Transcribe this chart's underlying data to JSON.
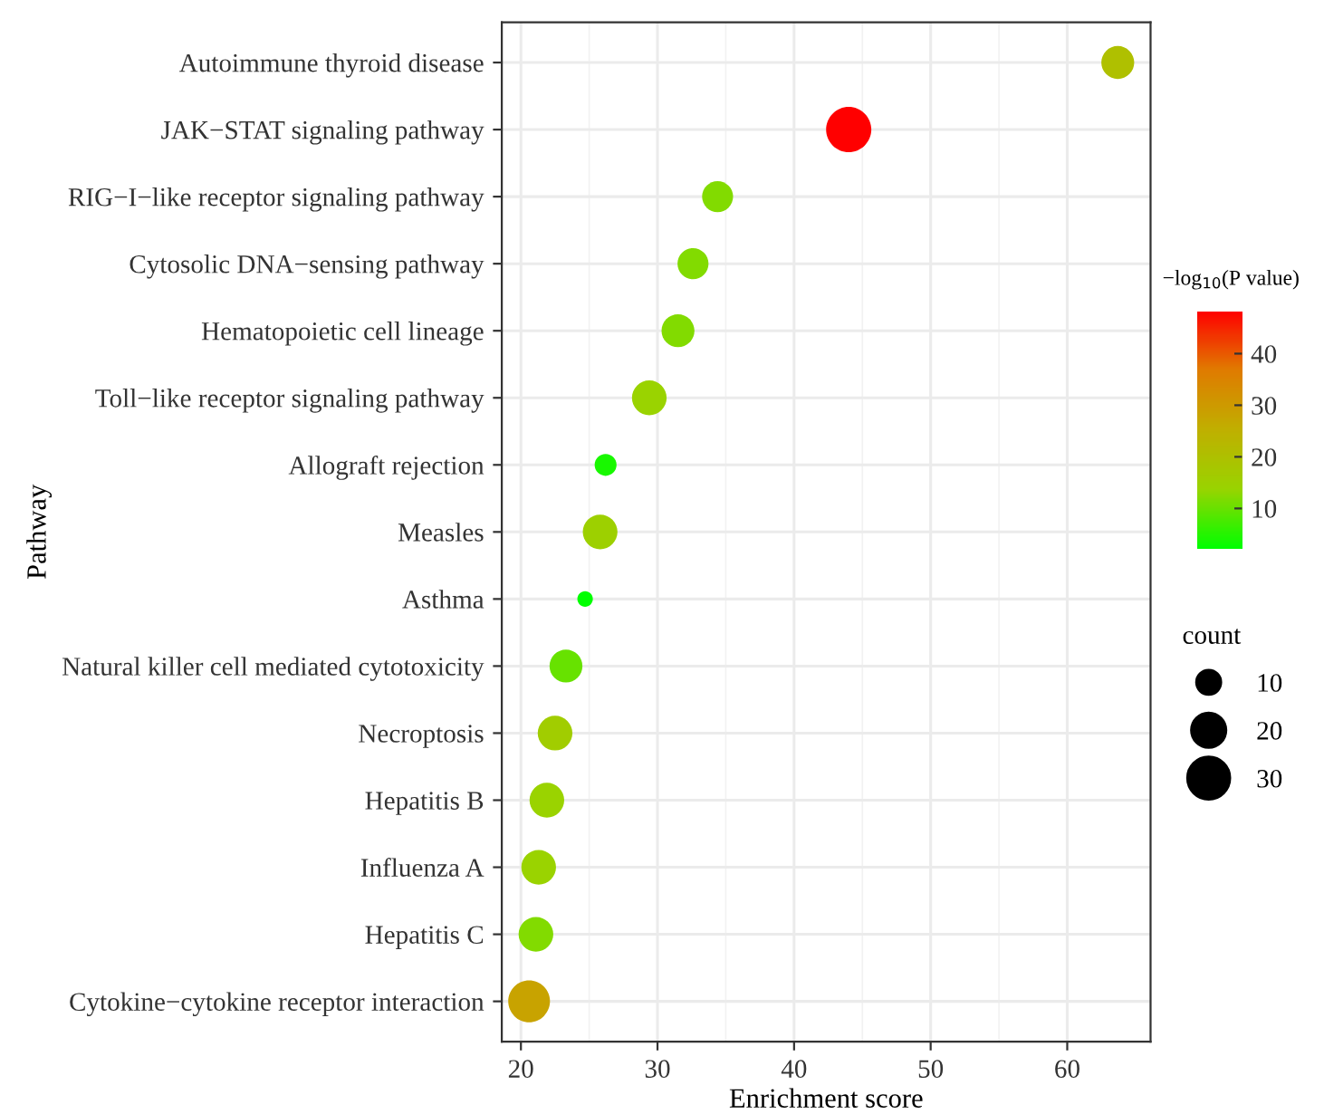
{
  "chart_data": {
    "type": "bubble",
    "xlabel": "Enrichment score",
    "ylabel": "Pathway",
    "clabel": "−log$_{10}$(P value)",
    "legend_title": "count",
    "categories": [
      "Autoimmune thyroid disease",
      "JAK−STAT signaling pathway",
      "RIG−I−like receptor signaling pathway",
      "Cytosolic DNA−sensing pathway",
      "Hematopoietic cell lineage",
      "Toll−like receptor signaling pathway",
      "Allograft rejection",
      "Measles",
      "Asthma",
      "Natural killer cell mediated cytotoxicity",
      "Necroptosis",
      "Hepatitis B",
      "Influenza A",
      "Hepatitis C",
      "Cytokine−cytokine receptor interaction"
    ],
    "values": [
      63.7,
      44.0,
      34.4,
      32.6,
      31.5,
      29.4,
      26.2,
      25.8,
      24.7,
      23.3,
      22.5,
      21.9,
      21.3,
      21.1,
      20.6
    ],
    "sizes": [
      18,
      34,
      16,
      16,
      18,
      20,
      8,
      20,
      4,
      18,
      20,
      20,
      20,
      20,
      29
    ],
    "size_legend": [
      10,
      20,
      30
    ],
    "cvalues": [
      20,
      48.3,
      12,
      12,
      12,
      14,
      4,
      15,
      2.1,
      10,
      16,
      14,
      14,
      12,
      28
    ],
    "clim": [
      2.1,
      48.3
    ],
    "cticks": [
      10,
      20,
      30,
      40
    ],
    "orientation": "horizontal",
    "xlim": [
      18.6,
      66.1
    ],
    "xticks": [
      20,
      30,
      40,
      50,
      60
    ],
    "grid": true
  }
}
